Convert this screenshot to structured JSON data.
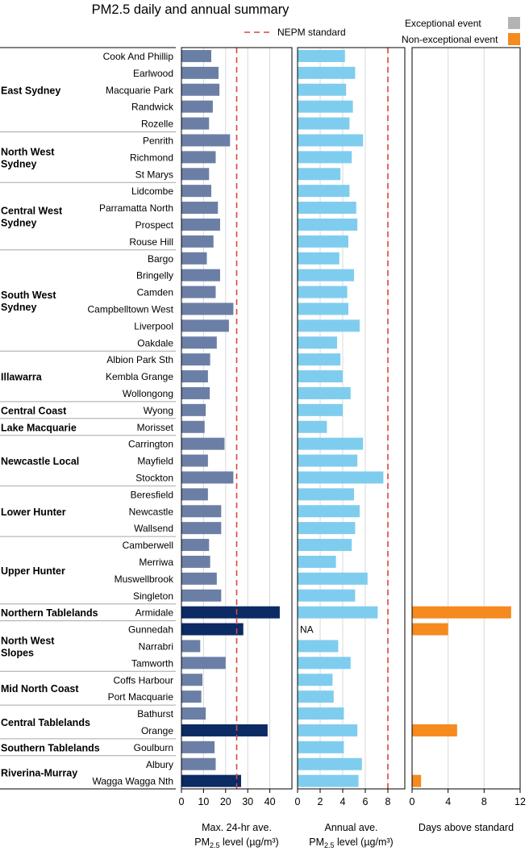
{
  "chart_data": {
    "type": "bar",
    "title": "PM2.5 daily and annual summary",
    "legend": {
      "standard_label": "NEPM standard",
      "exceptional_label": "Exceptional event",
      "non_exceptional_label": "Non-exceptional event",
      "placement": "top"
    },
    "colors": {
      "daily_bar": "#6b7fa6",
      "daily_exceed_bar": "#0c2a63",
      "annual_bar": "#7fcdee",
      "days_bar": "#f58a1f",
      "exceptional": "#b3b3b3",
      "standard_line": "#d9473a"
    },
    "panels": [
      {
        "id": "daily",
        "xlabel_line1": "Max. 24-hr ave.",
        "xlabel_line2": "PM",
        "xlabel_sub": "2.5",
        "xlabel_rest": " level (µg/m³)",
        "xlim": [
          0,
          50
        ],
        "ticks": [
          0,
          10,
          20,
          30,
          40
        ],
        "standard": 25
      },
      {
        "id": "annual",
        "xlabel_line1": "Annual ave.",
        "xlabel_line2": "PM",
        "xlabel_sub": "2.5",
        "xlabel_rest": " level (µg/m³)",
        "xlim": [
          0,
          9.5
        ],
        "ticks": [
          0,
          2,
          4,
          6,
          8
        ],
        "standard": 8
      },
      {
        "id": "days",
        "xlabel_line1": "Days above standard",
        "xlim": [
          0,
          12
        ],
        "ticks": [
          0,
          4,
          8,
          12
        ]
      }
    ],
    "regions": [
      {
        "name": [
          "East Sydney"
        ],
        "stations": [
          {
            "name": "Cook And Phillip",
            "daily": 13.5,
            "annual": 4.2,
            "days": 0
          },
          {
            "name": "Earlwood",
            "daily": 16.8,
            "annual": 5.1,
            "days": 0
          },
          {
            "name": "Macquarie Park",
            "daily": 17.2,
            "annual": 4.3,
            "days": 0
          },
          {
            "name": "Randwick",
            "daily": 14.2,
            "annual": 4.9,
            "days": 0
          },
          {
            "name": "Rozelle",
            "daily": 12.5,
            "annual": 4.6,
            "days": 0
          }
        ]
      },
      {
        "name": [
          "North West",
          "Sydney"
        ],
        "stations": [
          {
            "name": "Penrith",
            "daily": 22.0,
            "annual": 5.8,
            "days": 0
          },
          {
            "name": "Richmond",
            "daily": 15.5,
            "annual": 4.8,
            "days": 0
          },
          {
            "name": "St Marys",
            "daily": 12.5,
            "annual": 3.8,
            "days": 0
          }
        ]
      },
      {
        "name": [
          "Central West",
          "Sydney"
        ],
        "stations": [
          {
            "name": "Lidcombe",
            "daily": 13.5,
            "annual": 4.6,
            "days": 0
          },
          {
            "name": "Parramatta North",
            "daily": 16.5,
            "annual": 5.2,
            "days": 0
          },
          {
            "name": "Prospect",
            "daily": 17.5,
            "annual": 5.3,
            "days": 0
          },
          {
            "name": "Rouse Hill",
            "daily": 14.5,
            "annual": 4.5,
            "days": 0
          }
        ]
      },
      {
        "name": [
          "South West",
          "Sydney"
        ],
        "stations": [
          {
            "name": "Bargo",
            "daily": 11.5,
            "annual": 3.7,
            "days": 0
          },
          {
            "name": "Bringelly",
            "daily": 17.5,
            "annual": 5.0,
            "days": 0
          },
          {
            "name": "Camden",
            "daily": 15.5,
            "annual": 4.4,
            "days": 0
          },
          {
            "name": "Campbelltown West",
            "daily": 23.5,
            "annual": 4.5,
            "days": 0
          },
          {
            "name": "Liverpool",
            "daily": 21.5,
            "annual": 5.5,
            "days": 0
          },
          {
            "name": "Oakdale",
            "daily": 16.0,
            "annual": 3.5,
            "days": 0
          }
        ]
      },
      {
        "name": [
          "Illawarra"
        ],
        "stations": [
          {
            "name": "Albion Park Sth",
            "daily": 13.0,
            "annual": 3.8,
            "days": 0
          },
          {
            "name": "Kembla Grange",
            "daily": 12.0,
            "annual": 4.0,
            "days": 0
          },
          {
            "name": "Wollongong",
            "daily": 12.8,
            "annual": 4.7,
            "days": 0
          }
        ]
      },
      {
        "name": [
          "Central Coast"
        ],
        "stations": [
          {
            "name": "Wyong",
            "daily": 11.0,
            "annual": 4.0,
            "days": 0
          }
        ]
      },
      {
        "name": [
          "Lake Macquarie"
        ],
        "stations": [
          {
            "name": "Morisset",
            "daily": 10.5,
            "annual": 2.6,
            "days": 0
          }
        ]
      },
      {
        "name": [
          "Newcastle Local"
        ],
        "stations": [
          {
            "name": "Carrington",
            "daily": 19.5,
            "annual": 5.8,
            "days": 0
          },
          {
            "name": "Mayfield",
            "daily": 12.0,
            "annual": 5.3,
            "days": 0
          },
          {
            "name": "Stockton",
            "daily": 23.5,
            "annual": 7.6,
            "days": 0
          }
        ]
      },
      {
        "name": [
          "Lower Hunter"
        ],
        "stations": [
          {
            "name": "Beresfield",
            "daily": 12.0,
            "annual": 5.0,
            "days": 0
          },
          {
            "name": "Newcastle",
            "daily": 18.0,
            "annual": 5.5,
            "days": 0
          },
          {
            "name": "Wallsend",
            "daily": 18.0,
            "annual": 5.1,
            "days": 0
          }
        ]
      },
      {
        "name": [
          "Upper Hunter"
        ],
        "stations": [
          {
            "name": "Camberwell",
            "daily": 12.5,
            "annual": 4.8,
            "days": 0
          },
          {
            "name": "Merriwa",
            "daily": 13.0,
            "annual": 3.4,
            "days": 0
          },
          {
            "name": "Muswellbrook",
            "daily": 16.0,
            "annual": 6.2,
            "days": 0
          },
          {
            "name": "Singleton",
            "daily": 18.0,
            "annual": 5.1,
            "days": 0
          }
        ]
      },
      {
        "name": [
          "Northern Tablelands"
        ],
        "stations": [
          {
            "name": "Armidale",
            "daily": 44.5,
            "annual": 7.1,
            "days": 11
          }
        ]
      },
      {
        "name": [
          "North West",
          "Slopes"
        ],
        "stations": [
          {
            "name": "Gunnedah",
            "daily": 28.0,
            "annual": null,
            "annual_label": "NA",
            "days": 4
          },
          {
            "name": "Narrabri",
            "daily": 8.5,
            "annual": 3.6,
            "days": 0
          },
          {
            "name": "Tamworth",
            "daily": 20.0,
            "annual": 4.7,
            "days": 0
          }
        ]
      },
      {
        "name": [
          "Mid North Coast"
        ],
        "stations": [
          {
            "name": "Coffs Harbour",
            "daily": 9.5,
            "annual": 3.1,
            "days": 0
          },
          {
            "name": "Port Macquarie",
            "daily": 9.0,
            "annual": 3.2,
            "days": 0
          }
        ]
      },
      {
        "name": [
          "Central Tablelands"
        ],
        "stations": [
          {
            "name": "Bathurst",
            "daily": 11.0,
            "annual": 4.1,
            "days": 0
          },
          {
            "name": "Orange",
            "daily": 39.0,
            "annual": 5.3,
            "days": 5
          }
        ]
      },
      {
        "name": [
          "Southern Tablelands"
        ],
        "stations": [
          {
            "name": "Goulburn",
            "daily": 15.0,
            "annual": 4.1,
            "days": 0
          }
        ]
      },
      {
        "name": [
          "Riverina-Murray"
        ],
        "stations": [
          {
            "name": "Albury",
            "daily": 15.5,
            "annual": 5.7,
            "days": 0
          },
          {
            "name": "Wagga Wagga Nth",
            "daily": 27.0,
            "annual": 5.4,
            "days": 1
          }
        ]
      }
    ]
  }
}
